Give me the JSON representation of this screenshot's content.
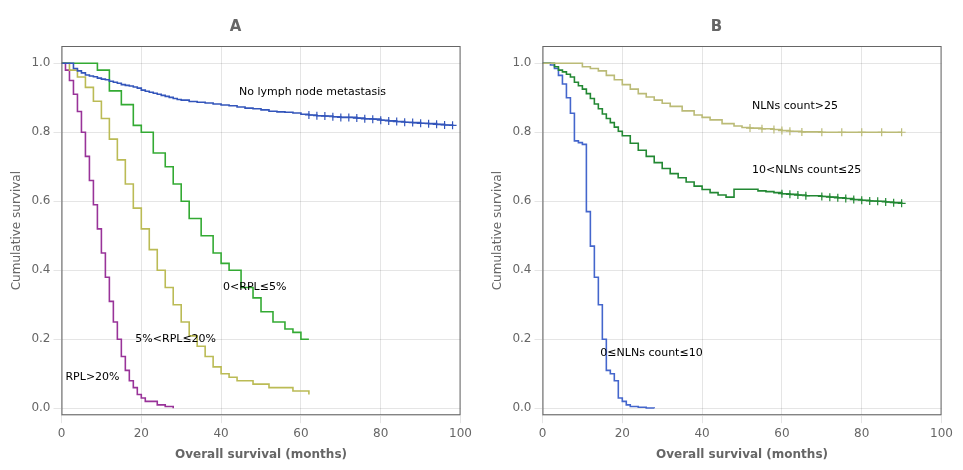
{
  "chart_data": [
    {
      "type": "line",
      "title": "A",
      "xlabel": "Overall survival (months)",
      "ylabel": "Cumulative survival",
      "xlim": [
        0,
        100
      ],
      "ylim": [
        -0.02,
        1.05
      ],
      "xticks": [
        0,
        20,
        40,
        60,
        80,
        100
      ],
      "yticks": [
        {
          "value": 0.0,
          "label": "0.0"
        },
        0.2,
        0.4,
        0.6,
        0.8,
        {
          "value": 1.0,
          "label": "1.0"
        }
      ],
      "series": [
        {
          "type": "step",
          "color": "#3355bb",
          "x": [
            0,
            1,
            2,
            3,
            4,
            5,
            6,
            7,
            8,
            9,
            10,
            11,
            12,
            13,
            14,
            15,
            16,
            17,
            18,
            19,
            20,
            21,
            22,
            23,
            24,
            25,
            26,
            27,
            28,
            29,
            30,
            32,
            34,
            36,
            38,
            40,
            42,
            44,
            46,
            48,
            50,
            52,
            54,
            56,
            58,
            60,
            62,
            64,
            66,
            68,
            70,
            72,
            74,
            76,
            78,
            80,
            82,
            84,
            86,
            88,
            90,
            92,
            94,
            96,
            98
          ],
          "values": [
            1.0,
            1.0,
            1.0,
            0.985,
            0.978,
            0.972,
            0.966,
            0.963,
            0.961,
            0.957,
            0.954,
            0.952,
            0.948,
            0.945,
            0.942,
            0.938,
            0.936,
            0.934,
            0.931,
            0.928,
            0.922,
            0.919,
            0.916,
            0.913,
            0.91,
            0.907,
            0.904,
            0.901,
            0.898,
            0.895,
            0.893,
            0.889,
            0.887,
            0.885,
            0.882,
            0.879,
            0.877,
            0.873,
            0.87,
            0.868,
            0.865,
            0.861,
            0.859,
            0.858,
            0.856,
            0.852,
            0.85,
            0.848,
            0.847,
            0.845,
            0.843,
            0.843,
            0.841,
            0.839,
            0.838,
            0.835,
            0.833,
            0.831,
            0.829,
            0.828,
            0.826,
            0.825,
            0.823,
            0.821,
            0.82
          ],
          "marker": "plus",
          "censored_x": [
            62,
            64,
            66,
            68,
            70,
            72,
            74,
            76,
            78,
            80,
            82,
            84,
            86,
            88,
            90,
            92,
            94,
            96,
            98
          ],
          "censored_y": [
            0.85,
            0.848,
            0.847,
            0.845,
            0.843,
            0.843,
            0.841,
            0.839,
            0.838,
            0.835,
            0.833,
            0.831,
            0.829,
            0.828,
            0.826,
            0.825,
            0.823,
            0.821,
            0.82
          ]
        },
        {
          "type": "step",
          "color": "#33aa33",
          "x": [
            0,
            3,
            6,
            9,
            12,
            15,
            18,
            20,
            23,
            26,
            28,
            30,
            32,
            35,
            38,
            40,
            42,
            45,
            48,
            50,
            53,
            56,
            58,
            60,
            62
          ],
          "values": [
            1.0,
            1.0,
            1.0,
            0.98,
            0.92,
            0.88,
            0.82,
            0.8,
            0.74,
            0.7,
            0.65,
            0.6,
            0.55,
            0.5,
            0.45,
            0.42,
            0.4,
            0.35,
            0.32,
            0.28,
            0.25,
            0.23,
            0.22,
            0.2,
            0.2
          ]
        },
        {
          "type": "step",
          "color": "#bbbb55",
          "x": [
            0,
            2,
            4,
            6,
            8,
            10,
            12,
            14,
            16,
            18,
            20,
            22,
            24,
            26,
            28,
            30,
            32,
            34,
            36,
            38,
            40,
            42,
            44,
            48,
            52,
            58,
            62
          ],
          "values": [
            1.0,
            0.98,
            0.96,
            0.93,
            0.89,
            0.84,
            0.78,
            0.72,
            0.65,
            0.58,
            0.52,
            0.46,
            0.4,
            0.35,
            0.3,
            0.25,
            0.21,
            0.18,
            0.15,
            0.12,
            0.1,
            0.09,
            0.08,
            0.07,
            0.06,
            0.05,
            0.04
          ]
        },
        {
          "type": "step",
          "color": "#993399",
          "x": [
            0,
            1,
            2,
            3,
            4,
            5,
            6,
            7,
            8,
            9,
            10,
            11,
            12,
            13,
            14,
            15,
            16,
            17,
            18,
            19,
            20,
            21,
            22,
            24,
            26,
            28
          ],
          "values": [
            1.0,
            0.98,
            0.95,
            0.91,
            0.86,
            0.8,
            0.73,
            0.66,
            0.59,
            0.52,
            0.45,
            0.38,
            0.31,
            0.25,
            0.2,
            0.15,
            0.11,
            0.08,
            0.06,
            0.04,
            0.03,
            0.02,
            0.02,
            0.01,
            0.005,
            0.0
          ]
        }
      ],
      "annotations": [
        {
          "text": "No lymph node metastasis",
          "x": 44,
          "y": 0.915
        },
        {
          "text": "0<RPL≤5%",
          "x": 40,
          "y": 0.35
        },
        {
          "text": "5%<RPL≤20%",
          "x": 18,
          "y": 0.2
        },
        {
          "text": "RPL>20%",
          "x": 0.5,
          "y": 0.09
        }
      ]
    },
    {
      "type": "line",
      "title": "B",
      "xlabel": "Overall survival (months)",
      "ylabel": "Cumulative survival",
      "xlim": [
        0,
        100
      ],
      "ylim": [
        -0.02,
        1.05
      ],
      "xticks": [
        0,
        20,
        40,
        60,
        80,
        100
      ],
      "yticks": [
        {
          "value": 0.0,
          "label": "0.0"
        },
        0.2,
        0.4,
        0.6,
        0.8,
        {
          "value": 1.0,
          "label": "1.0"
        }
      ],
      "series": [
        {
          "type": "step",
          "color": "#bbbb77",
          "x": [
            0,
            2,
            4,
            6,
            8,
            10,
            12,
            14,
            16,
            18,
            20,
            22,
            24,
            26,
            28,
            30,
            32,
            35,
            38,
            40,
            42,
            45,
            48,
            50,
            52,
            55,
            58,
            60,
            62,
            65,
            70,
            75,
            80,
            85,
            90
          ],
          "values": [
            1.0,
            1.0,
            1.0,
            1.0,
            1.0,
            0.99,
            0.985,
            0.978,
            0.965,
            0.952,
            0.938,
            0.925,
            0.912,
            0.902,
            0.893,
            0.884,
            0.875,
            0.862,
            0.85,
            0.843,
            0.836,
            0.825,
            0.818,
            0.814,
            0.812,
            0.81,
            0.808,
            0.805,
            0.803,
            0.801,
            0.8,
            0.8,
            0.8,
            0.8,
            0.8
          ],
          "marker": "plus",
          "censored_x": [
            52,
            55,
            58,
            60,
            62,
            65,
            70,
            75,
            80,
            85,
            90
          ],
          "censored_y": [
            0.812,
            0.81,
            0.808,
            0.805,
            0.803,
            0.801,
            0.8,
            0.8,
            0.8,
            0.8,
            0.8
          ]
        },
        {
          "type": "step",
          "color": "#228833",
          "x": [
            0,
            1,
            2,
            3,
            4,
            5,
            6,
            7,
            8,
            9,
            10,
            11,
            12,
            13,
            14,
            15,
            16,
            17,
            18,
            19,
            20,
            22,
            24,
            26,
            28,
            30,
            32,
            34,
            36,
            38,
            40,
            42,
            44,
            46,
            48,
            50,
            52,
            54,
            56,
            58,
            60,
            62,
            64,
            66,
            70,
            72,
            74,
            76,
            78,
            80,
            82,
            84,
            86,
            88,
            90
          ],
          "values": [
            1.0,
            1.0,
            1.0,
            0.99,
            0.98,
            0.975,
            0.968,
            0.96,
            0.945,
            0.935,
            0.925,
            0.912,
            0.898,
            0.882,
            0.868,
            0.853,
            0.84,
            0.828,
            0.815,
            0.803,
            0.79,
            0.768,
            0.748,
            0.73,
            0.712,
            0.695,
            0.68,
            0.668,
            0.656,
            0.644,
            0.634,
            0.625,
            0.618,
            0.612,
            0.635,
            0.635,
            0.635,
            0.63,
            0.628,
            0.625,
            0.622,
            0.62,
            0.618,
            0.616,
            0.614,
            0.612,
            0.61,
            0.608,
            0.605,
            0.603,
            0.601,
            0.6,
            0.598,
            0.596,
            0.594
          ],
          "marker": "plus",
          "censored_x": [
            60,
            62,
            64,
            66,
            70,
            72,
            74,
            76,
            78,
            80,
            82,
            84,
            86,
            88,
            90
          ],
          "censored_y": [
            0.622,
            0.62,
            0.618,
            0.616,
            0.614,
            0.612,
            0.61,
            0.608,
            0.605,
            0.603,
            0.601,
            0.6,
            0.598,
            0.596,
            0.594
          ]
        },
        {
          "type": "step",
          "color": "#4466cc",
          "x": [
            0,
            1,
            2,
            3,
            4,
            5,
            6,
            7,
            8,
            9,
            10,
            11,
            12,
            13,
            14,
            15,
            16,
            17,
            18,
            19,
            20,
            21,
            22,
            24,
            26,
            28
          ],
          "values": [
            1.0,
            1.0,
            0.995,
            0.985,
            0.965,
            0.94,
            0.9,
            0.855,
            0.775,
            0.77,
            0.765,
            0.57,
            0.47,
            0.38,
            0.3,
            0.2,
            0.11,
            0.1,
            0.08,
            0.03,
            0.02,
            0.01,
            0.005,
            0.003,
            0.001,
            0.0
          ]
        }
      ],
      "annotations": [
        {
          "text": "NLNs count>25",
          "x": 52,
          "y": 0.875
        },
        {
          "text": "10<NLNs count≤25",
          "x": 52,
          "y": 0.69
        },
        {
          "text": "0≤NLNs count≤10",
          "x": 14,
          "y": 0.16
        }
      ]
    }
  ]
}
